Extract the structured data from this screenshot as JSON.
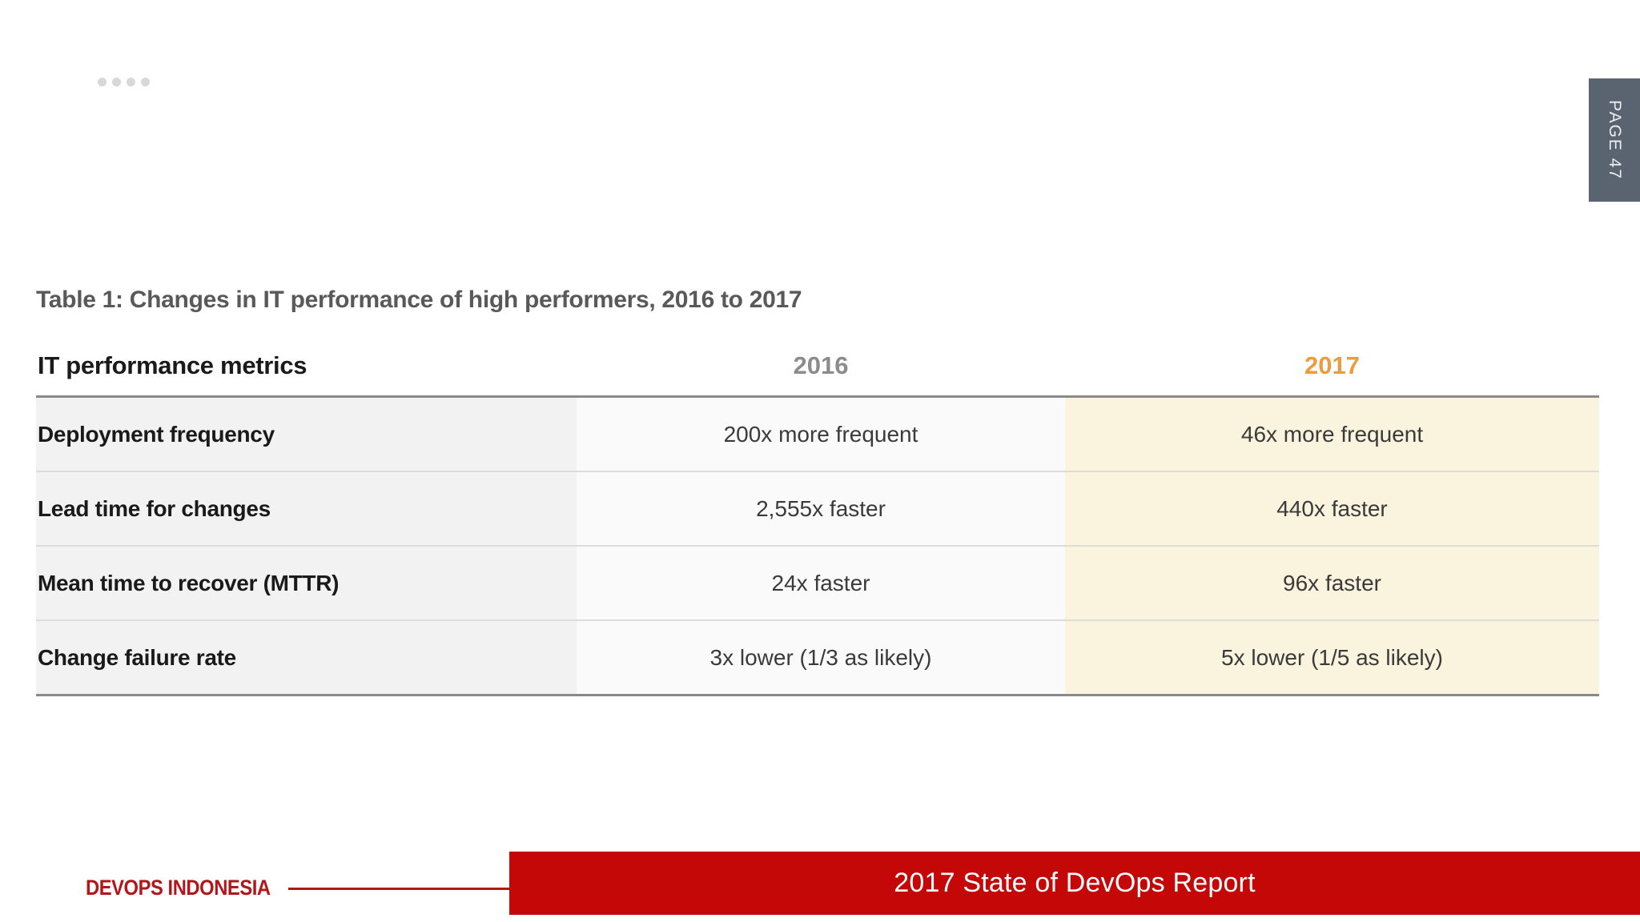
{
  "page_tab": {
    "label": "PAGE 47"
  },
  "decor": {
    "dots_count": 4
  },
  "table": {
    "caption": "Table 1: Changes in IT performance of high performers, 2016 to 2017",
    "columns": [
      "IT performance metrics",
      "2016",
      "2017"
    ],
    "rows": [
      {
        "metric": "Deployment frequency",
        "y2016": "200x more frequent",
        "y2017": "46x more frequent"
      },
      {
        "metric": "Lead time for changes",
        "y2016": "2,555x faster",
        "y2017": "440x faster"
      },
      {
        "metric": "Mean time to recover (MTTR)",
        "y2016": "24x faster",
        "y2017": "96x faster"
      },
      {
        "metric": "Change failure rate",
        "y2016": "3x lower (1/3 as likely)",
        "y2017": "5x lower (1/5 as likely)"
      }
    ]
  },
  "footer": {
    "brand": "DEVOPS INDONESIA",
    "banner": "2017 State of DevOps Report"
  },
  "colors": {
    "accent_2017": "#ED9C3D",
    "header_2016_gray": "#8C8C8C",
    "banner_red": "#C40707",
    "brand_red": "#B2161A",
    "page_tab_slate": "#5A6470",
    "metric_col_bg": "#F2F2F2",
    "col_2016_bg": "#FAFAFA",
    "col_2017_bg": "#FAF3DD"
  }
}
